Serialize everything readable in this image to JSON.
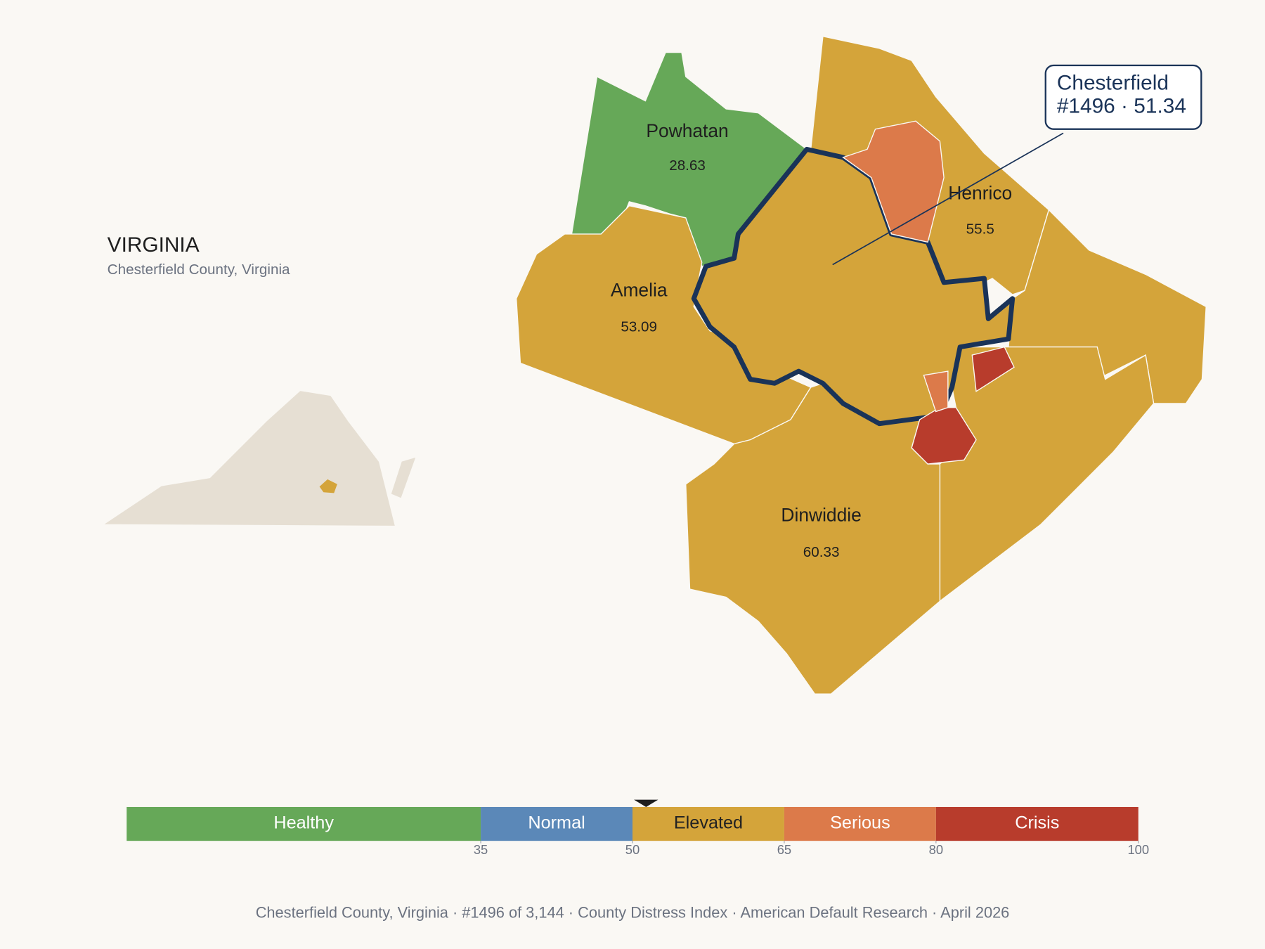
{
  "title": "VIRGINIA",
  "subtitle": "Chesterfield County, Virginia",
  "callout": {
    "name": "Chesterfield",
    "label": "#1496 · 51.34",
    "color": "#d4a43a",
    "outline": "#1a3358"
  },
  "counties": [
    {
      "name": "Powhatan",
      "value": 28.63,
      "color": "#66a858"
    },
    {
      "name": "Henrico",
      "value": 55.5,
      "color": "#d4a43a"
    },
    {
      "name": "Amelia",
      "value": 53.09,
      "color": "#d4a43a"
    },
    {
      "name": "Dinwiddie",
      "value": 60.33,
      "color": "#d4a43a"
    }
  ],
  "scale": {
    "min": 0,
    "max": 100,
    "marker": 51.34,
    "bands": [
      {
        "label": "Healthy",
        "from": 0,
        "to": 35,
        "color": "#66a858",
        "label_color": "#ffffff"
      },
      {
        "label": "Normal",
        "from": 35,
        "to": 50,
        "color": "#5b88b8",
        "label_color": "#ffffff"
      },
      {
        "label": "Elevated",
        "from": 50,
        "to": 65,
        "color": "#d4a43a",
        "label_color": "#222222"
      },
      {
        "label": "Serious",
        "from": 65,
        "to": 80,
        "color": "#dc7a4a",
        "label_color": "#ffffff"
      },
      {
        "label": "Crisis",
        "from": 80,
        "to": 100,
        "color": "#b83c2c",
        "label_color": "#ffffff"
      }
    ],
    "ticks": [
      35,
      50,
      65,
      80,
      100
    ]
  },
  "footer": "Chesterfield County, Virginia  ·  #1496 of 3,144  ·  County Distress Index  ·  American Default Research  ·  April 2026"
}
